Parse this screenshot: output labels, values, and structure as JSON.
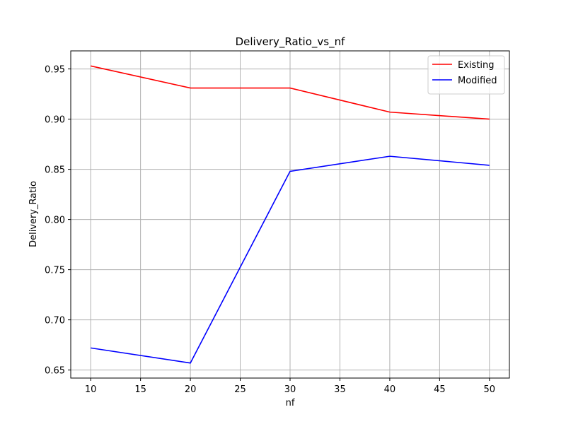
{
  "chart_data": {
    "type": "line",
    "title": "Delivery_Ratio_vs_nf",
    "xlabel": "nf",
    "ylabel": "Delivery_Ratio",
    "x": [
      10,
      20,
      30,
      40,
      50
    ],
    "xlim": [
      8,
      52
    ],
    "ylim": [
      0.642,
      0.968
    ],
    "xticks": [
      10,
      15,
      20,
      25,
      30,
      35,
      40,
      45,
      50
    ],
    "yticks": [
      0.65,
      0.7,
      0.75,
      0.8,
      0.85,
      0.9,
      0.95
    ],
    "ytick_labels": [
      "0.65",
      "0.70",
      "0.75",
      "0.80",
      "0.85",
      "0.90",
      "0.95"
    ],
    "grid": true,
    "legend_position": "top-right",
    "series": [
      {
        "name": "Existing",
        "color": "#ff0000",
        "values": [
          0.953,
          0.931,
          0.931,
          0.907,
          0.9
        ]
      },
      {
        "name": "Modified",
        "color": "#0000ff",
        "values": [
          0.672,
          0.657,
          0.848,
          0.863,
          0.854
        ]
      }
    ]
  }
}
